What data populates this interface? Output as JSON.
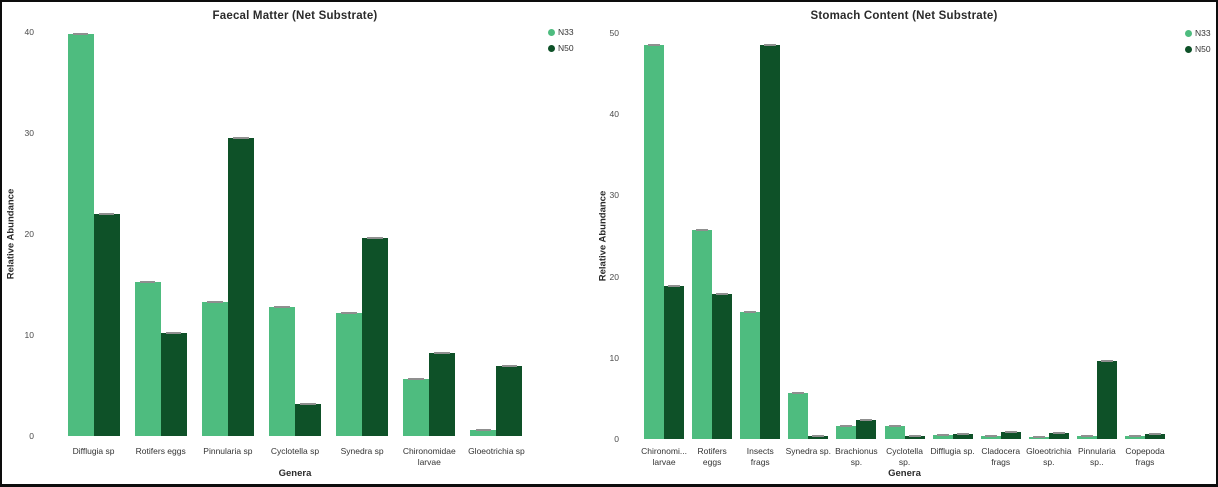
{
  "figure": {
    "background": "#ffffff",
    "border_color": "#0d0d0d"
  },
  "colors": {
    "n33": "#4EBC7F",
    "n50": "#0E5128",
    "error_cap": "#8f8f8f",
    "text": "#2b2b2b"
  },
  "chart_data": [
    {
      "type": "bar",
      "title": "Faecal Matter (Net Substrate)",
      "xlabel": "Genera",
      "ylabel": "Relative Abundance",
      "ylim": [
        0,
        40
      ],
      "yticks": [
        0,
        10,
        20,
        30,
        40
      ],
      "grid": false,
      "legend_position": "top-right",
      "error_bars": true,
      "error_bar_approx": 0.2,
      "categories": [
        "Difflugia sp",
        "Rotifers eggs",
        "Pinnularia sp",
        "Cyclotella sp",
        "Synedra sp",
        "Chironomidae\nlarvae",
        "Gloeotrichia sp"
      ],
      "series": [
        {
          "name": "N33",
          "color": "#4EBC7F",
          "values": [
            39.8,
            15.2,
            13.3,
            12.8,
            12.2,
            5.6,
            0.6
          ]
        },
        {
          "name": "N50",
          "color": "#0E5128",
          "values": [
            22.0,
            10.2,
            29.5,
            3.2,
            19.6,
            8.2,
            6.9
          ]
        }
      ]
    },
    {
      "type": "bar",
      "title": "Stomach Content (Net Substrate)",
      "xlabel": "Genera",
      "ylabel": "Relative Abundance",
      "ylim": [
        0,
        50
      ],
      "yticks": [
        0,
        10,
        20,
        30,
        40,
        50
      ],
      "grid": false,
      "legend_position": "top-right",
      "error_bars": true,
      "error_bar_approx": 0.2,
      "categories": [
        "Chironomi...\nlarvae",
        "Rotifers\neggs",
        "Insects\nfrags",
        "Synedra sp.",
        "Brachionus\nsp.",
        "Cyclotella\nsp.",
        "Difflugia sp.",
        "Cladocera\nfrags",
        "Gloeotrichia\nsp.",
        "Pinnularia\nsp..",
        "Copepoda\nfrags"
      ],
      "series": [
        {
          "name": "N33",
          "color": "#4EBC7F",
          "values": [
            48.5,
            25.7,
            15.7,
            5.7,
            1.6,
            1.6,
            0.5,
            0.4,
            0.3,
            0.4,
            0.4
          ]
        },
        {
          "name": "N50",
          "color": "#0E5128",
          "values": [
            18.8,
            17.9,
            48.5,
            0.4,
            2.3,
            0.4,
            0.6,
            0.9,
            0.7,
            9.6,
            0.6
          ]
        }
      ]
    }
  ]
}
